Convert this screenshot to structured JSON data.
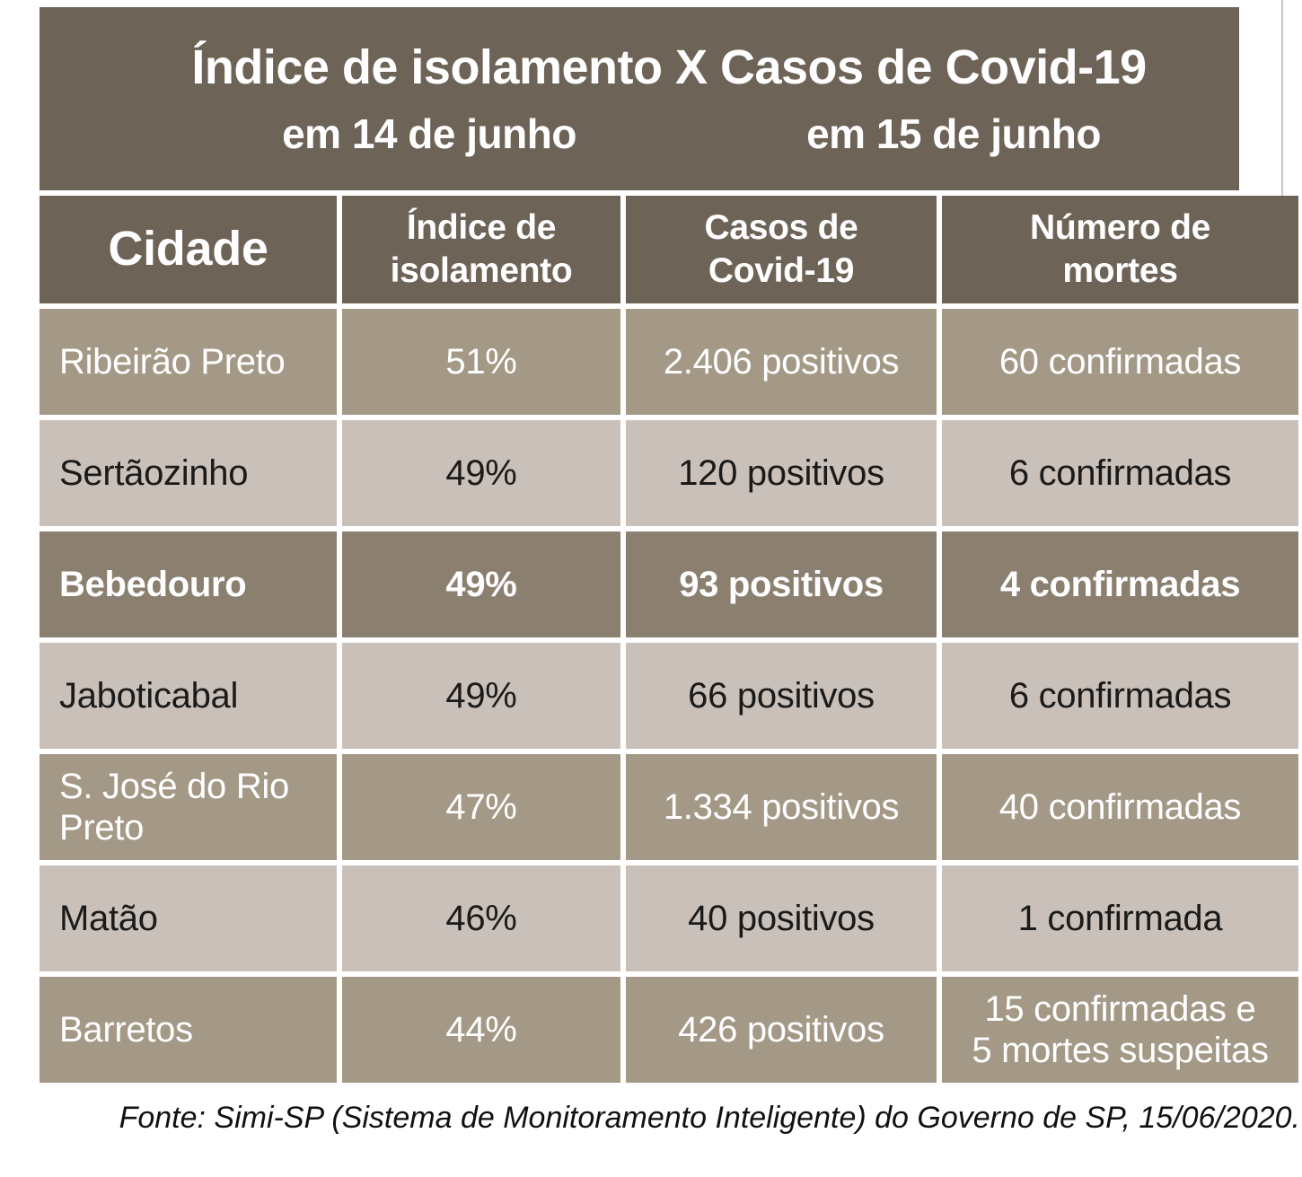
{
  "colors": {
    "header_bg": "#6E6357",
    "row_mid_bg": "#A49986",
    "row_highlight_bg": "#8B7F70",
    "row_light_bg": "#C9C0B9",
    "text_light": "#FFFFFF",
    "text_dark": "#1A1A1A",
    "page_bg": "#FFFFFF"
  },
  "chart_data": {
    "type": "table",
    "title": "Índice de isolamento X Casos de Covid-19",
    "subtitle_isolation_date": "em 14 de junho",
    "subtitle_cases_date": "em 15 de junho",
    "columns": [
      "Cidade",
      "Índice de isolamento",
      "Casos de Covid-19",
      "Número de mortes"
    ],
    "rows": [
      {
        "cidade": "Ribeirão Preto",
        "indice_isolamento": "51%",
        "casos_covid19": "2.406 positivos",
        "numero_mortes": "60 confirmadas"
      },
      {
        "cidade": "Sertãozinho",
        "indice_isolamento": "49%",
        "casos_covid19": "120 positivos",
        "numero_mortes": "6 confirmadas"
      },
      {
        "cidade": "Bebedouro",
        "indice_isolamento": "49%",
        "casos_covid19": "93 positivos",
        "numero_mortes": "4 confirmadas"
      },
      {
        "cidade": "Jaboticabal",
        "indice_isolamento": "49%",
        "casos_covid19": "66 positivos",
        "numero_mortes": "6 confirmadas"
      },
      {
        "cidade": "S. José do Rio Preto",
        "indice_isolamento": "47%",
        "casos_covid19": "1.334 positivos",
        "numero_mortes": "40 confirmadas"
      },
      {
        "cidade": "Matão",
        "indice_isolamento": "46%",
        "casos_covid19": "40 positivos",
        "numero_mortes": "1 confirmada"
      },
      {
        "cidade": "Barretos",
        "indice_isolamento": "44%",
        "casos_covid19": "426 positivos",
        "numero_mortes": "15 confirmadas e\n5 mortes suspeitas"
      }
    ],
    "numeric": {
      "isolamento_pct": [
        51,
        49,
        49,
        49,
        47,
        46,
        44
      ],
      "casos_positivos": [
        2406,
        120,
        93,
        66,
        1334,
        40,
        426
      ],
      "mortes_confirmadas": [
        60,
        6,
        4,
        6,
        40,
        1,
        15
      ],
      "mortes_suspeitas_barretos": 5
    },
    "highlighted_row": "Bebedouro",
    "legend_position": "none",
    "source": "Fonte: Simi-SP (Sistema de Monitoramento Inteligente) do Governo de SP, 15/06/2020."
  }
}
